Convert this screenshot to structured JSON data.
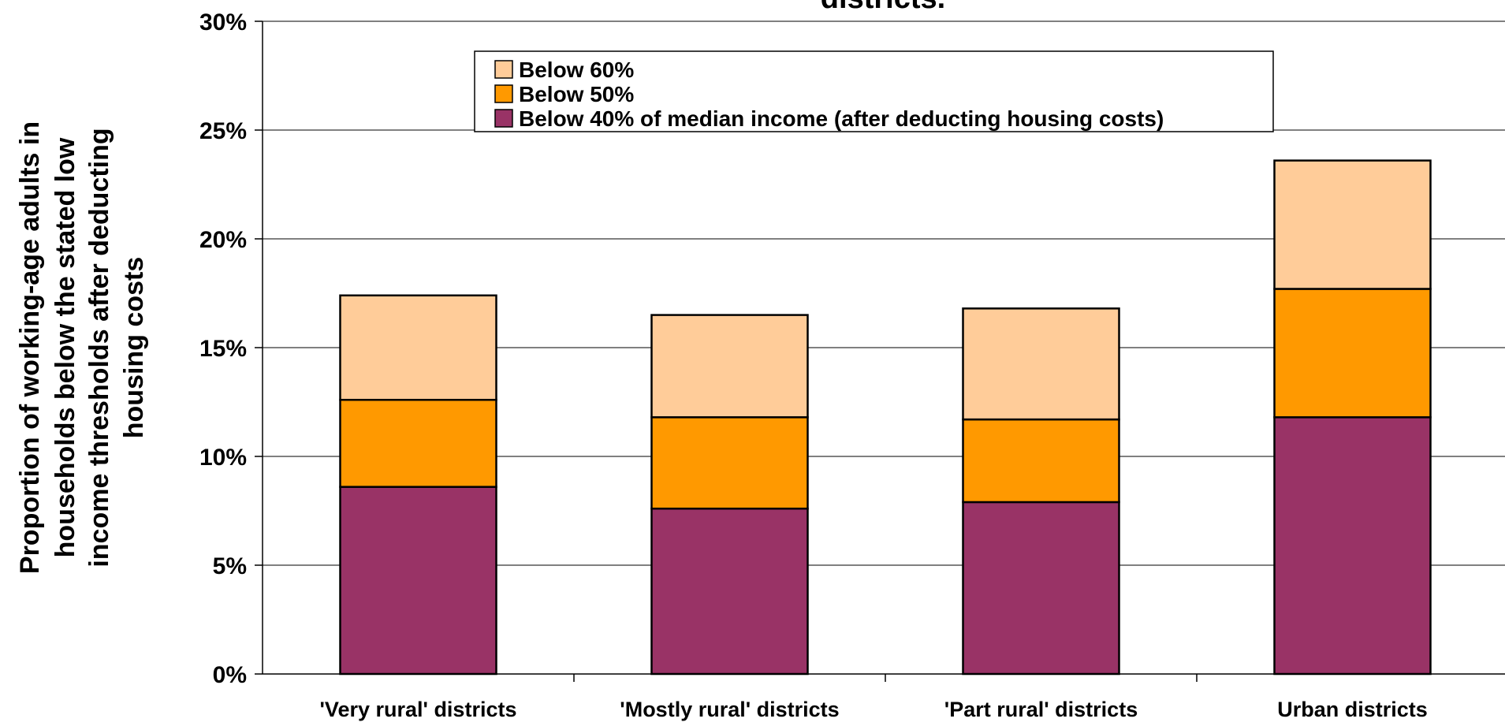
{
  "chart_data": {
    "type": "bar",
    "stacked": true,
    "title": "districts.",
    "ylabel": [
      "Proportion of working-age adults in",
      "households below the stated low",
      "income thresholds after deducting",
      "housing costs"
    ],
    "xlabel": "",
    "categories": [
      "'Very rural' districts",
      "'Mostly rural' districts",
      "'Part rural' districts",
      "Urban districts"
    ],
    "series": [
      {
        "name": "Below 40% of median income (after deducting housing costs)",
        "color": "#993366",
        "values": [
          8.6,
          7.6,
          7.9,
          11.8
        ]
      },
      {
        "name": "Below 50%",
        "color": "#FF9900",
        "values": [
          4.0,
          4.2,
          3.8,
          5.9
        ]
      },
      {
        "name": "Below 60%",
        "color": "#FFCC99",
        "values": [
          4.8,
          4.7,
          5.1,
          5.9
        ]
      }
    ],
    "legend_order": [
      "Below 60%",
      "Below 50%",
      "Below 40% of median income (after deducting housing costs)"
    ],
    "ylim": [
      0,
      30
    ],
    "yticks": [
      "0%",
      "5%",
      "10%",
      "15%",
      "20%",
      "25%",
      "30%"
    ],
    "grid": true,
    "legend_position": "top"
  }
}
